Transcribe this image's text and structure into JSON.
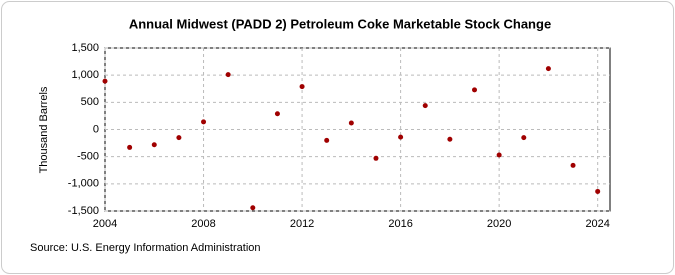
{
  "chart_data": {
    "type": "scatter",
    "title": "Annual Midwest (PADD 2) Petroleum Coke Marketable Stock Change",
    "y_label": "Thousand Barrels",
    "source": "Source: U.S. Energy Information Administration",
    "x": [
      2004,
      2005,
      2006,
      2007,
      2008,
      2009,
      2010,
      2011,
      2012,
      2013,
      2014,
      2015,
      2016,
      2017,
      2018,
      2019,
      2020,
      2021,
      2022,
      2023,
      2024
    ],
    "values": [
      890,
      -330,
      -280,
      -150,
      140,
      1010,
      -1440,
      290,
      790,
      -200,
      120,
      -530,
      -140,
      440,
      -180,
      730,
      -470,
      -150,
      1120,
      -660,
      -1140
    ],
    "color": "#a00000",
    "xlim": [
      2004,
      2024.5
    ],
    "xticks": [
      2004,
      2008,
      2012,
      2016,
      2020,
      2024
    ],
    "ylim": [
      -1500,
      1500
    ],
    "yticks": [
      {
        "value": -1500,
        "label": "-1,500"
      },
      {
        "value": -1000,
        "label": "-1,000"
      },
      -500,
      0,
      500,
      {
        "value": 1000,
        "label": "1,000"
      },
      {
        "value": 1500,
        "label": "1,500"
      }
    ],
    "grid": true
  }
}
